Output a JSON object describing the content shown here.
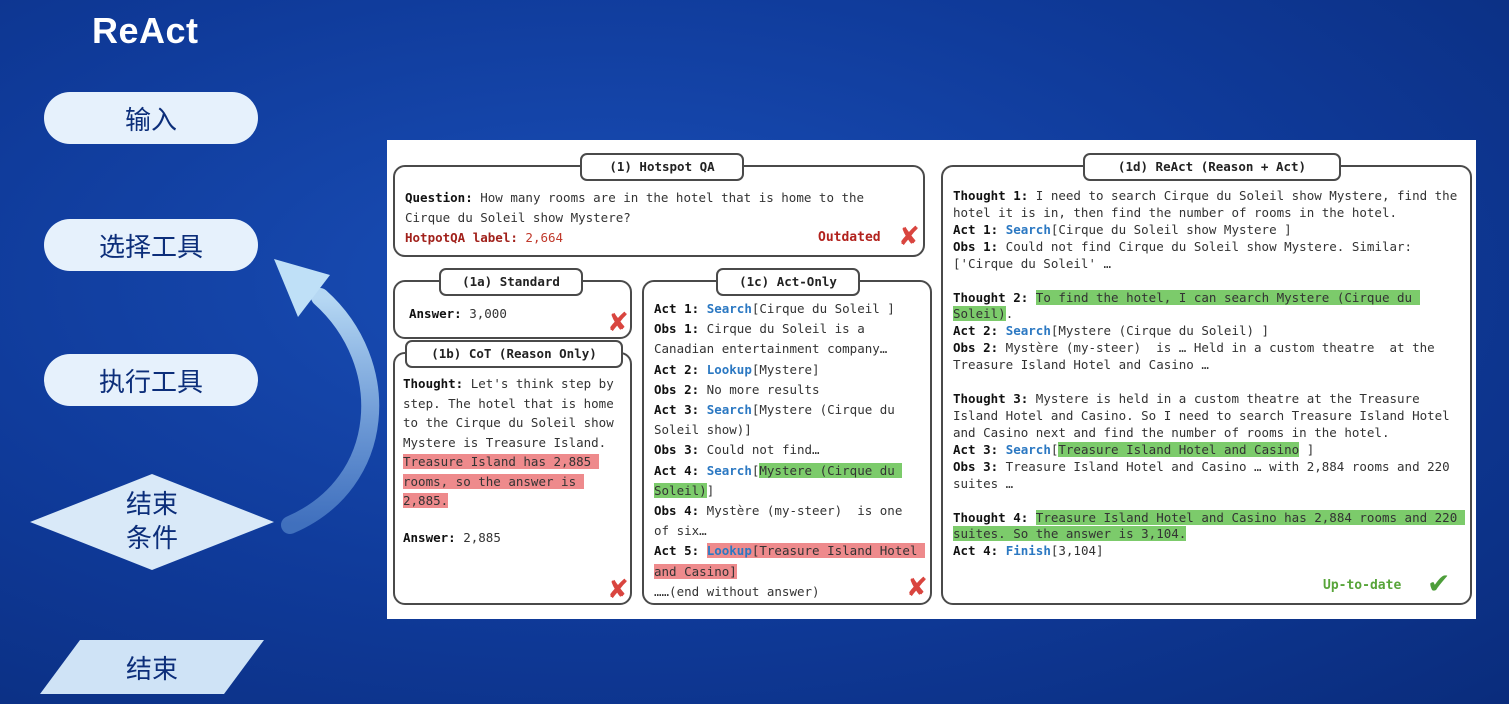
{
  "slide": {
    "title": "ReAct",
    "flow": {
      "input": "输入",
      "select_tool": "选择工具",
      "exec_tool": "执行工具",
      "end_condition_1": "结束",
      "end_condition_2": "条件",
      "end": "结束"
    }
  },
  "figure": {
    "hotspot": {
      "tag": "(1) Hotspot QA",
      "q_label": "Question:",
      "q_text": " How many rooms are in the hotel that is home to the Cirque du Soleil show Mystere?",
      "label_key": "HotpotQA label:",
      "label_val": " 2,664",
      "status": "Outdated",
      "mark": "✘"
    },
    "standard": {
      "tag": "(1a) Standard",
      "answer_label": "Answer:",
      "answer_val": " 3,000",
      "mark": "✘"
    },
    "cot": {
      "tag": "(1b) CoT (Reason Only)",
      "thought_label": "Thought:",
      "thought_text": " Let's think step by step. The hotel that is home to the Cirque du Soleil show Mystere is Treasure Island. ",
      "thought_hl": "Treasure Island has 2,885 rooms, so the answer is 2,885.",
      "answer_label": "Answer:",
      "answer_val": " 2,885",
      "mark": "✘"
    },
    "act_only": {
      "tag": "(1c) Act-Only",
      "act1_label": "Act 1:",
      "act1_action": "Search",
      "act1_arg": "[Cirque du Soleil ]",
      "obs1_label": "Obs 1:",
      "obs1_text": " Cirque du Soleil is a Canadian entertainment company…",
      "act2_label": "Act 2:",
      "act2_action": "Lookup",
      "act2_arg": "[Mystere]",
      "obs2_label": "Obs 2:",
      "obs2_text": " No more results",
      "act3_label": "Act 3:",
      "act3_action": "Search",
      "act3_arg": "[Mystere (Cirque du Soleil show)]",
      "obs3_label": "Obs 3:",
      "obs3_text": " Could not find…",
      "act4_label": "Act 4:",
      "act4_action": "Search",
      "act4_pre": "[",
      "act4_hl": "Mystere (Cirque du Soleil)",
      "act4_post": "]",
      "obs4_label": "Obs 4:",
      "obs4_text": " Mystère (my-steer)  is one of six…",
      "act5_label": "Act 5:",
      "act5_hl": "[Treasure Island Hotel and Casino]",
      "end_text": "……(end without answer)",
      "mark": "✘"
    },
    "react": {
      "tag": "(1d) ReAct (Reason + Act)",
      "t1_label": "Thought 1:",
      "t1_text": " I need to search Cirque du Soleil show Mystere, find the hotel it is in, then find the number of rooms in the hotel.",
      "a1_label": "Act 1:",
      "a1_action": "Search",
      "a1_arg": "[Cirque du Soleil show Mystere ]",
      "o1_label": "Obs 1:",
      "o1_text": " Could not find Cirque du Soleil show Mystere. Similar: ['Cirque du Soleil' …",
      "t2_label": "Thought 2:",
      "t2_hl": "To find the hotel, I can search Mystere (Cirque du Soleil)",
      "t2_post": ".",
      "a2_label": "Act 2:",
      "a2_action": "Search",
      "a2_arg": "[Mystere (Cirque du Soleil) ]",
      "o2_label": "Obs 2:",
      "o2_text": " Mystère (my-steer)  is … Held in a custom theatre  at the Treasure Island Hotel and Casino …",
      "t3_label": "Thought 3:",
      "t3_text": " Mystere is held in a custom theatre at the Treasure Island Hotel and Casino. So I need to search Treasure Island Hotel and Casino next and find the number of rooms in the hotel.",
      "a3_label": "Act 3:",
      "a3_action": "Search",
      "a3_pre": "[",
      "a3_hl": "Treasure Island Hotel and Casino",
      "a3_post": " ]",
      "o3_label": "Obs 3:",
      "o3_text": " Treasure Island Hotel and Casino … with 2,884 rooms and 220 suites …",
      "t4_label": "Thought 4:",
      "t4_hl": "Treasure Island Hotel and Casino has 2,884 rooms and 220 suites. So the answer is 3,104.",
      "a4_label": "Act 4:",
      "a4_action": "Finish",
      "a4_arg": "[3,104]",
      "status": "Up-to-date",
      "mark": "✔"
    }
  }
}
